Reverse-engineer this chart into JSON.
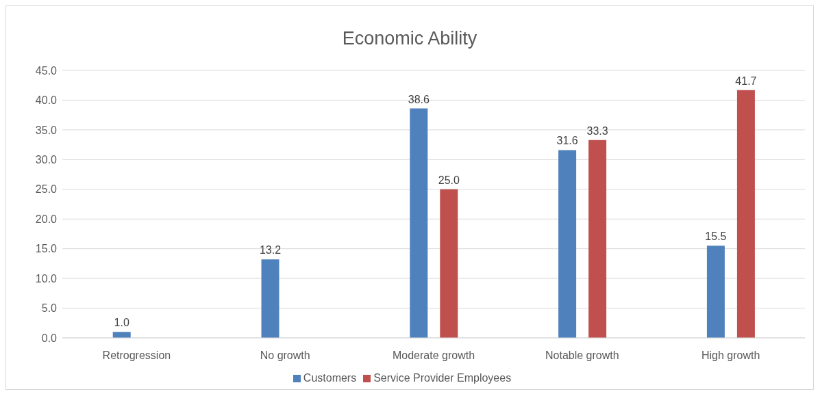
{
  "chart_data": {
    "type": "bar",
    "title": "Economic Ability",
    "categories": [
      "Retrogression",
      "No growth",
      "Moderate growth",
      "Notable growth",
      "High growth"
    ],
    "series": [
      {
        "name": "Customers",
        "color": "#4f81bd",
        "values": [
          1.0,
          13.2,
          38.6,
          31.6,
          15.5
        ],
        "value_labels": [
          "1.0",
          "13.2",
          "38.6",
          "31.6",
          "15.5"
        ]
      },
      {
        "name": "Service Provider Employees",
        "color": "#c0504d",
        "values": [
          null,
          null,
          25.0,
          33.3,
          41.7
        ],
        "value_labels": [
          null,
          null,
          "25.0",
          "33.3",
          "41.7"
        ]
      }
    ],
    "ylim": [
      0,
      45
    ],
    "yticks": [
      {
        "value": 0,
        "label": "0.0"
      },
      {
        "value": 5,
        "label": "5.0"
      },
      {
        "value": 10,
        "label": "10.0"
      },
      {
        "value": 15,
        "label": "15.0"
      },
      {
        "value": 20,
        "label": "20.0"
      },
      {
        "value": 25,
        "label": "25.0"
      },
      {
        "value": 30,
        "label": "30.0"
      },
      {
        "value": 35,
        "label": "35.0"
      },
      {
        "value": 40,
        "label": "40.0"
      },
      {
        "value": 45,
        "label": "45.0"
      }
    ],
    "grid": "y",
    "legend": "bottom"
  }
}
